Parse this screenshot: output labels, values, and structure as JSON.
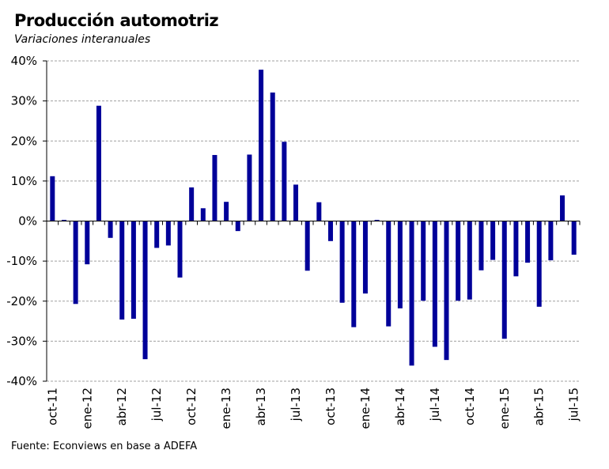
{
  "title": "Producción automotriz",
  "subtitle": "Variaciones interanuales",
  "source": "Fuente: Econviews en base a ADEFA",
  "colors": {
    "bar": "#000099",
    "grid": "#a0a0a0",
    "axis": "#000000"
  },
  "chart_data": {
    "type": "bar",
    "title": "Producción automotriz",
    "subtitle": "Variaciones interanuales",
    "ylim": [
      -40,
      40
    ],
    "yticks": [
      "-40%",
      "-30%",
      "-20%",
      "-10%",
      "0%",
      "10%",
      "20%",
      "30%",
      "40%"
    ],
    "grid": true,
    "xtick_labels": [
      "oct-11",
      "ene-12",
      "abr-12",
      "jul-12",
      "oct-12",
      "ene-13",
      "abr-13",
      "jul-13",
      "oct-13",
      "ene-14",
      "abr-14",
      "jul-14",
      "oct-14",
      "ene-15",
      "abr-15",
      "jul-15"
    ],
    "categories": [
      "oct-11",
      "nov-11",
      "dic-11",
      "ene-12",
      "feb-12",
      "mar-12",
      "abr-12",
      "may-12",
      "jun-12",
      "jul-12",
      "ago-12",
      "sep-12",
      "oct-12",
      "nov-12",
      "dic-12",
      "ene-13",
      "feb-13",
      "mar-13",
      "abr-13",
      "may-13",
      "jun-13",
      "jul-13",
      "ago-13",
      "sep-13",
      "oct-13",
      "nov-13",
      "dic-13",
      "ene-14",
      "feb-14",
      "mar-14",
      "abr-14",
      "may-14",
      "jun-14",
      "jul-14",
      "ago-14",
      "sep-14",
      "oct-14",
      "nov-14",
      "dic-14",
      "ene-15",
      "feb-15",
      "mar-15",
      "abr-15",
      "may-15",
      "jun-15",
      "jul-15"
    ],
    "values": [
      11.2,
      0.3,
      -20.7,
      -10.8,
      28.8,
      -4.2,
      -24.6,
      -24.4,
      -34.5,
      -6.7,
      -6.1,
      -14.1,
      8.4,
      3.2,
      16.5,
      4.8,
      -2.5,
      16.6,
      37.8,
      32.1,
      19.8,
      9.1,
      -12.4,
      4.7,
      -5.0,
      -20.4,
      -26.5,
      -18.1,
      0.3,
      -26.3,
      -21.8,
      -36.1,
      -19.9,
      -31.4,
      -34.7,
      -19.9,
      -19.6,
      -12.3,
      -9.7,
      -29.4,
      -13.8,
      -10.4,
      -21.4,
      -9.8,
      6.4,
      -8.4
    ]
  }
}
